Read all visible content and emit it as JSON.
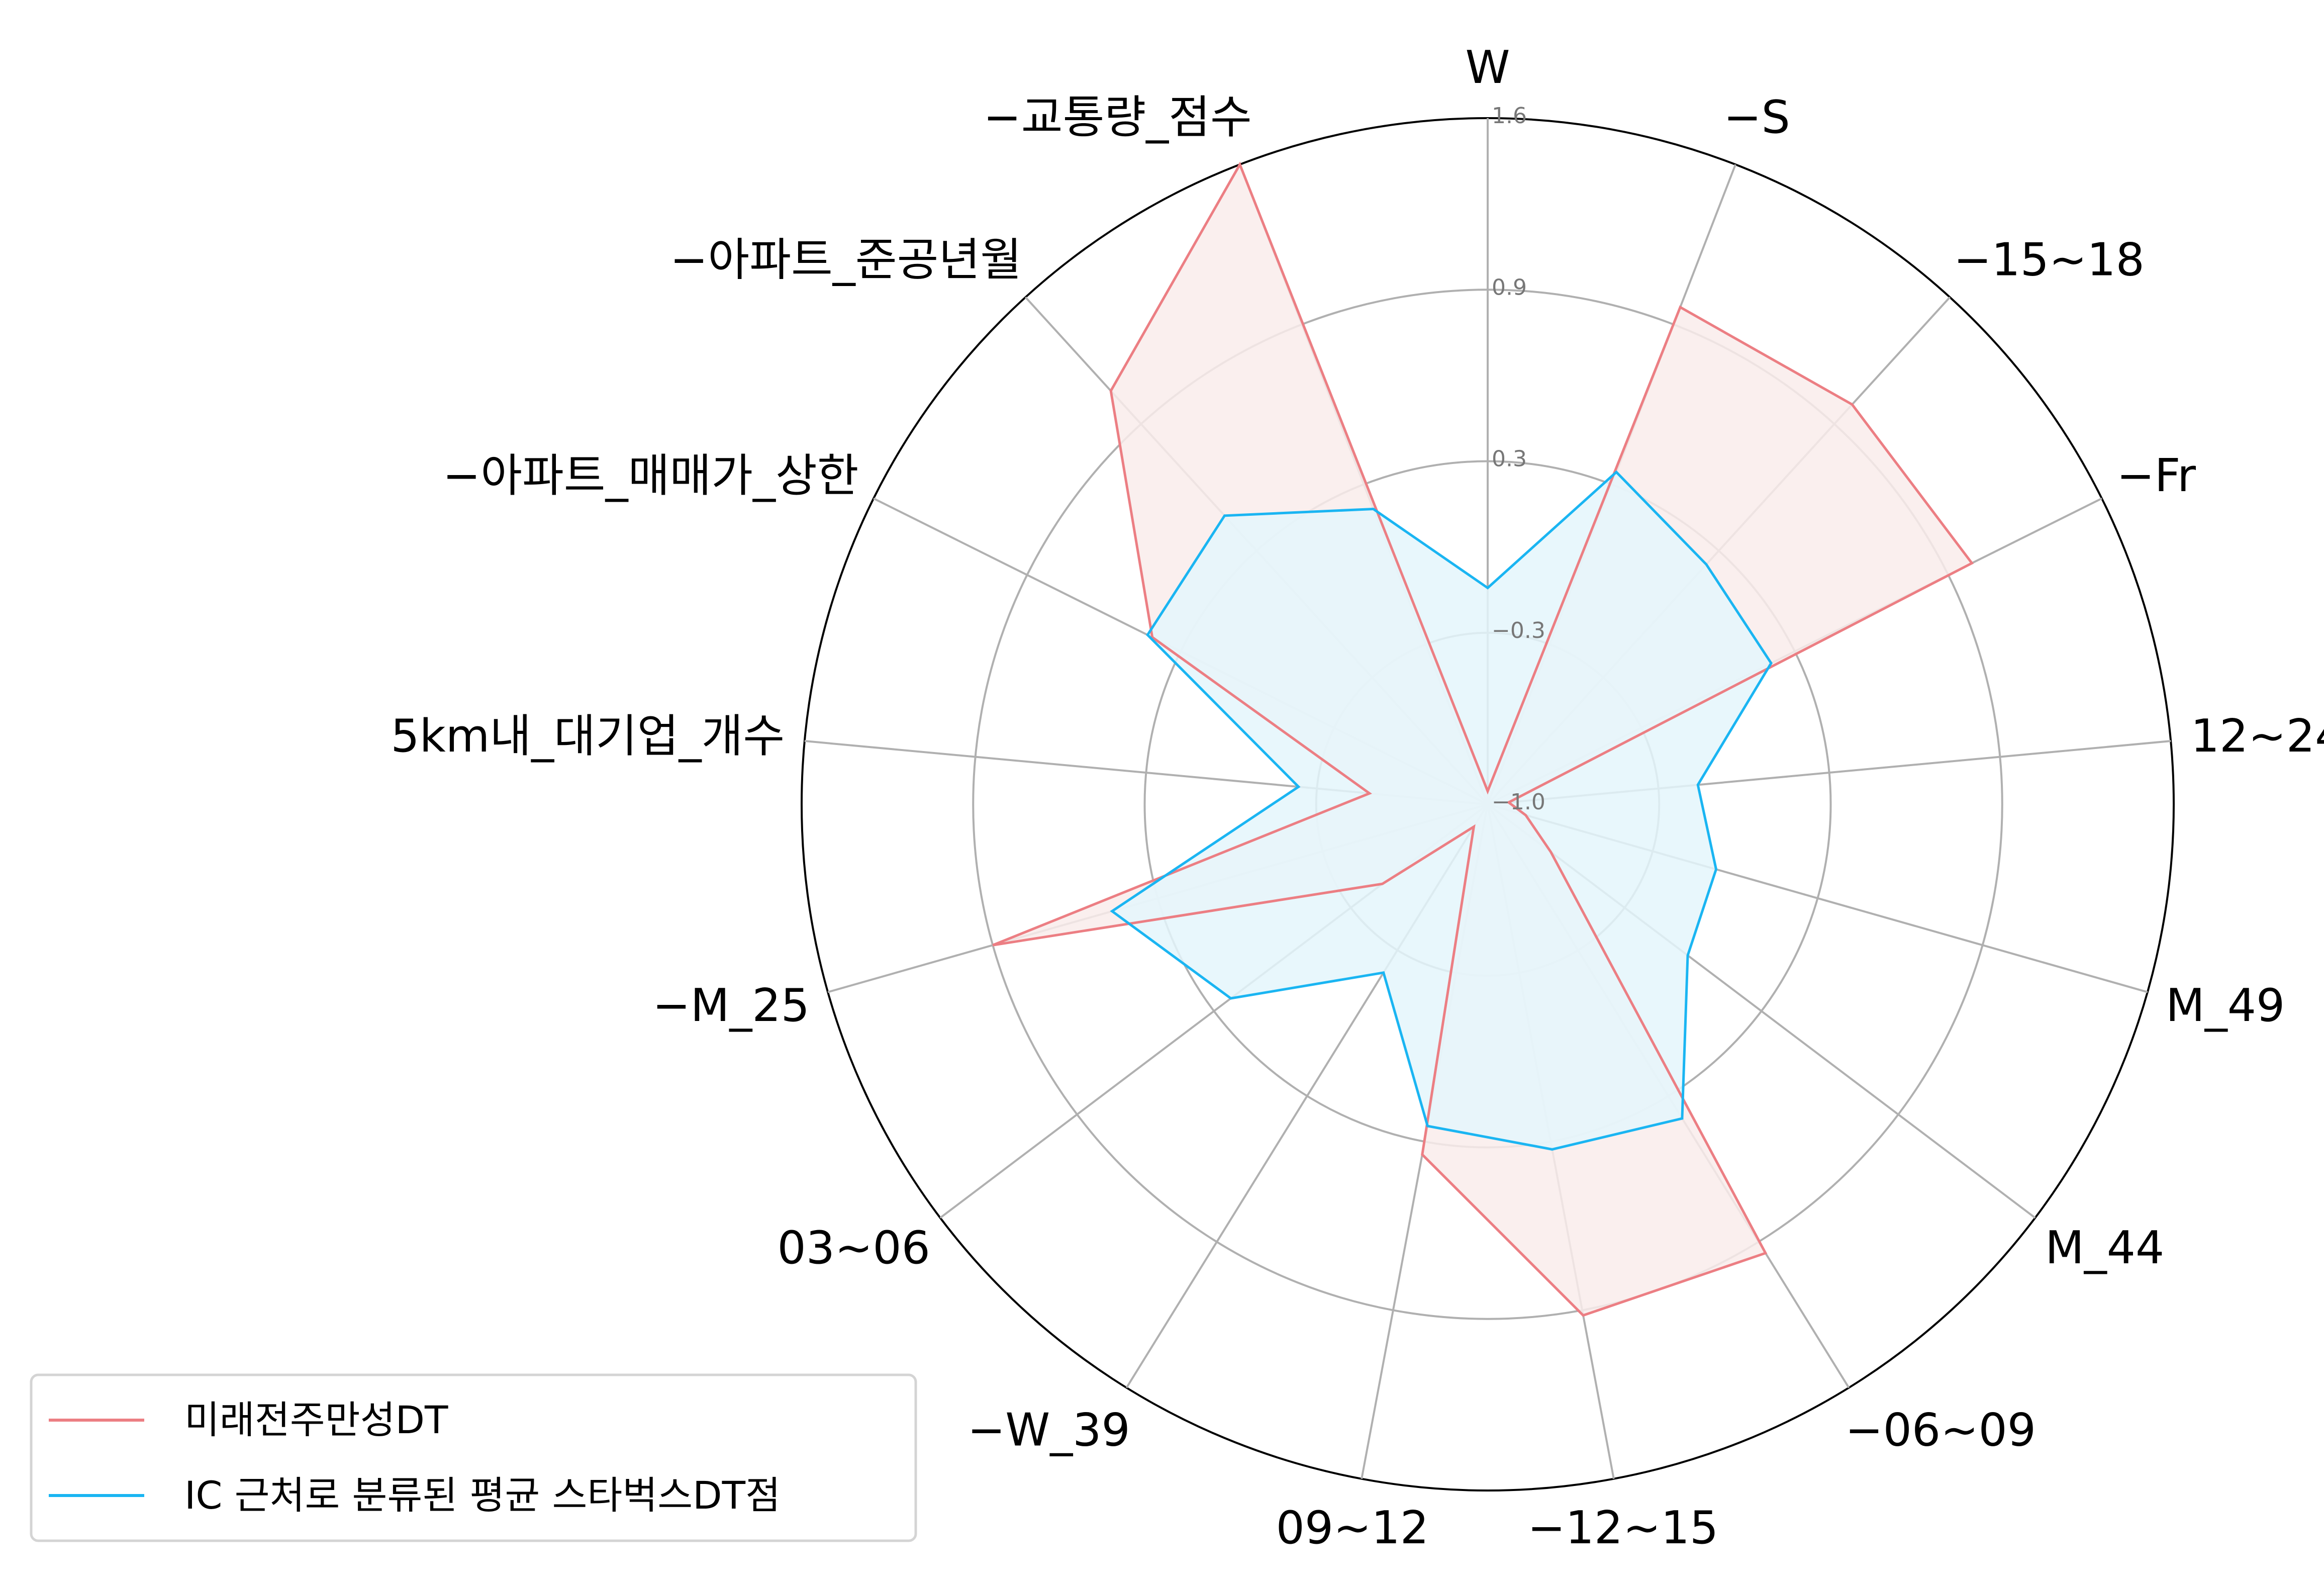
{
  "chart_data": {
    "type": "radar",
    "title": "",
    "categories": [
      "W",
      "−S",
      "−15~18",
      "−Fr",
      "12~24",
      "M_49",
      "M_44",
      "−06~09",
      "−12~15",
      "09~12",
      "−W_39",
      "03~06",
      "−M_25",
      "5km내_대기업_개수",
      "−아파트_매매가_상한",
      "−아파트_준공년월",
      "−교통량_점수"
    ],
    "radial_ticks": [
      "−1.0",
      "−0.3",
      "0.3",
      "0.9",
      "1.6"
    ],
    "radial_range": [
      -1.0,
      1.6
    ],
    "grid": true,
    "legend_position": "lower-left",
    "series": [
      {
        "name": "미래전주만성DT",
        "color": "#ec7e83",
        "fill_color": "#f9eceb",
        "values": [
          -0.95,
          1.02,
          1.05,
          1.05,
          -0.92,
          -0.85,
          -0.7,
          1.0,
          0.97,
          0.35,
          -0.9,
          -0.5,
          0.95,
          -0.55,
          0.42,
          1.12,
          1.6
        ]
      },
      {
        "name": "IC 근처로 분류된 평균 스타벅스DT점",
        "color": "#1ab5f2",
        "fill_color": "#e4f6fc",
        "values": [
          -0.18,
          0.35,
          0.23,
          0.2,
          -0.2,
          -0.1,
          -0.05,
          0.4,
          0.33,
          0.24,
          -0.25,
          0.22,
          0.48,
          -0.28,
          0.44,
          0.48,
          0.2
        ]
      }
    ]
  }
}
